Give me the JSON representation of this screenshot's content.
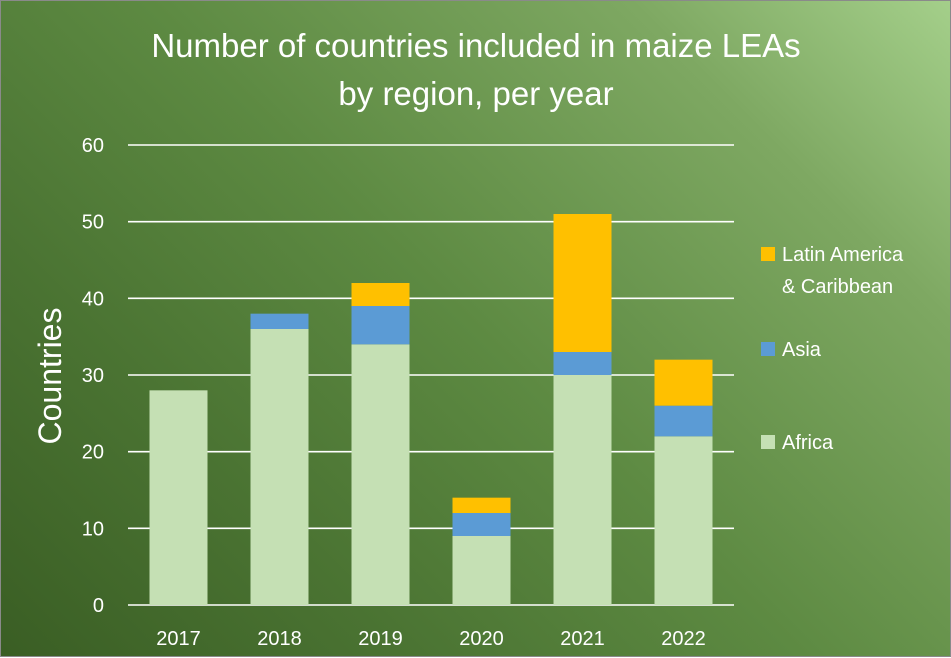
{
  "chart_data": {
    "type": "bar",
    "stacked": true,
    "title": [
      "Number of countries included in maize LEAs",
      "by region, per year"
    ],
    "xlabel": "",
    "ylabel": "Countries",
    "categories": [
      "2017",
      "2018",
      "2019",
      "2020",
      "2021",
      "2022"
    ],
    "ylim": [
      0,
      60
    ],
    "yticks": [
      0,
      10,
      20,
      30,
      40,
      50,
      60
    ],
    "grid": true,
    "legend_position": "right",
    "series": [
      {
        "name": "Africa",
        "color": "#c5e0b4",
        "values": [
          28,
          36,
          34,
          9,
          30,
          22
        ]
      },
      {
        "name": "Asia",
        "color": "#5b9bd5",
        "values": [
          0,
          2,
          5,
          3,
          3,
          4
        ]
      },
      {
        "name": "Latin America & Caribbean",
        "legend_lines": [
          "Latin America",
          "& Caribbean"
        ],
        "color": "#ffc000",
        "values": [
          0,
          0,
          3,
          2,
          18,
          6
        ]
      }
    ]
  }
}
